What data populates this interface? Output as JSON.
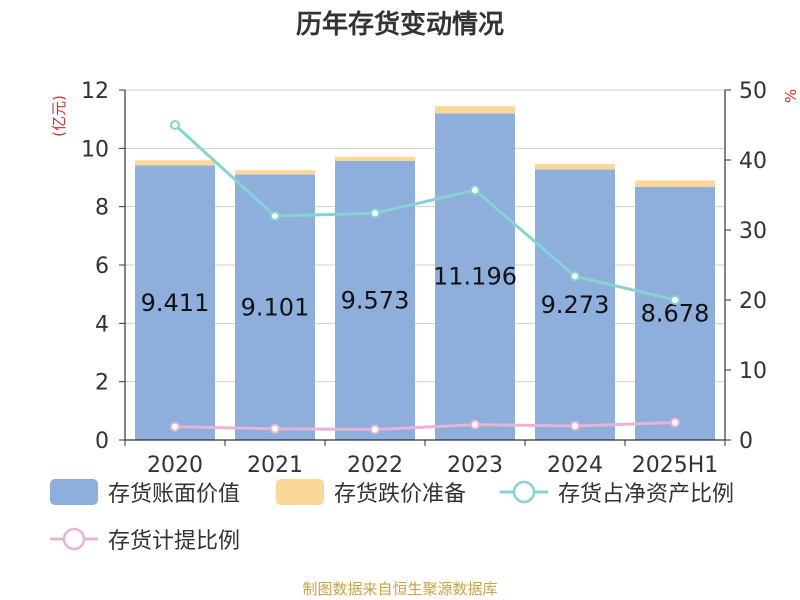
{
  "chart_data": {
    "type": "bar",
    "title": "历年存货变动情况",
    "categories": [
      "2020",
      "2021",
      "2022",
      "2023",
      "2024",
      "2025H1"
    ],
    "left_axis": {
      "label": "(亿元)",
      "min": 0,
      "max": 12,
      "ticks": [
        "0",
        "2",
        "4",
        "6",
        "8",
        "10",
        "12"
      ]
    },
    "right_axis": {
      "label": "%",
      "min": 0,
      "max": 50,
      "ticks": [
        "0",
        "10",
        "20",
        "30",
        "40",
        "50"
      ]
    },
    "series": [
      {
        "name": "存货账面价值",
        "kind": "bar",
        "axis": "left",
        "color": "#8eaedb",
        "values": [
          9.411,
          9.101,
          9.573,
          11.196,
          9.273,
          8.678
        ],
        "labels": [
          "9.411",
          "9.101",
          "9.573",
          "11.196",
          "9.273",
          "8.678"
        ]
      },
      {
        "name": "存货跌价准备",
        "kind": "bar",
        "stacked": true,
        "axis": "left",
        "color": "#fbd89a",
        "values": [
          0.18,
          0.15,
          0.14,
          0.25,
          0.19,
          0.22
        ]
      },
      {
        "name": "存货占净资产比例",
        "kind": "line",
        "axis": "right",
        "color": "#86d3d6",
        "values": [
          45.0,
          32.0,
          32.4,
          35.7,
          23.4,
          20.0
        ]
      },
      {
        "name": "存货计提比例",
        "kind": "line",
        "axis": "right",
        "color": "#e8b4d6",
        "values": [
          1.9,
          1.6,
          1.5,
          2.2,
          2.0,
          2.5
        ]
      }
    ],
    "grid": true,
    "legend_position": "bottom"
  },
  "footer": {
    "source": "制图数据来自恒生聚源数据库"
  }
}
